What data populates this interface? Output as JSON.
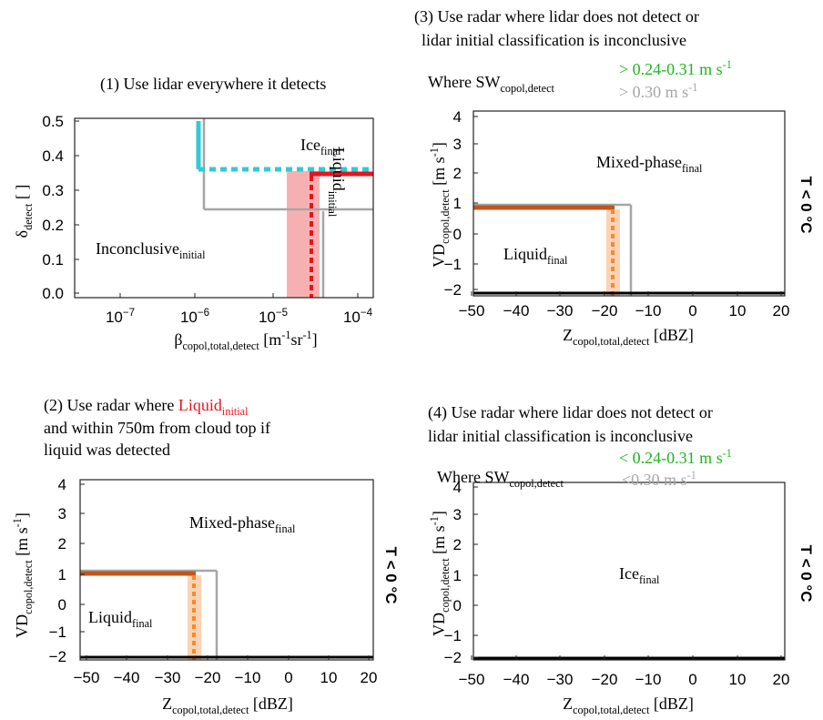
{
  "panels": [
    {
      "title": [
        [
          "(1) Use lidar everywhere it detects"
        ]
      ],
      "y_label": [
        "δ",
        {
          "t": "detect",
          "s": "sub"
        },
        " [ ]"
      ],
      "x_label": [
        "β",
        {
          "t": "copol,total,detect",
          "s": "sub"
        },
        " [m",
        {
          "t": "-1",
          "s": "sup"
        },
        "sr",
        {
          "t": "-1",
          "s": "sup"
        },
        "]"
      ],
      "y_ticks": [
        "0.5",
        "0.4",
        "0.3",
        "0.2",
        "0.1",
        "0.0"
      ],
      "x_ticks": [
        [
          "10",
          {
            "t": "−7",
            "s": "sup"
          }
        ],
        [
          "10",
          {
            "t": "−6",
            "s": "sup"
          }
        ],
        [
          "10",
          {
            "t": "−5",
            "s": "sup"
          }
        ],
        [
          "10",
          {
            "t": "−4",
            "s": "sup"
          }
        ]
      ],
      "regions": [
        [
          "Ice",
          {
            "t": "final",
            "s": "sub"
          }
        ],
        [
          "Inconclusive",
          {
            "t": "initial",
            "s": "sub"
          }
        ],
        [
          "Liquid",
          {
            "t": "initial",
            "s": "sub"
          }
        ]
      ],
      "notes": []
    },
    {
      "title": [
        [
          "(2) Use radar where ",
          {
            "t": "Liquid",
            "c": "#e8141b"
          },
          {
            "t": "initial",
            "s": "sub",
            "c": "#e8141b"
          }
        ],
        [
          " and within 750m from cloud top if"
        ],
        [
          " liquid was detected"
        ]
      ],
      "y_label": [
        "VD",
        {
          "t": "copol,detect",
          "s": "sub"
        },
        " [m s",
        {
          "t": "-1",
          "s": "sup"
        },
        "]"
      ],
      "x_label": [
        "Z",
        {
          "t": "copol,total,detect",
          "s": "sub"
        },
        " [dBZ]"
      ],
      "y_ticks": [
        "4",
        "3",
        "2",
        "1",
        "0",
        "−1",
        "−2"
      ],
      "x_ticks": [
        [
          "−50"
        ],
        [
          "−40"
        ],
        [
          "−30"
        ],
        [
          "−20"
        ],
        [
          "−10"
        ],
        [
          "0"
        ],
        [
          "10"
        ],
        [
          "20"
        ]
      ],
      "regions": [
        [
          "Mixed-phase",
          {
            "t": "final",
            "s": "sub"
          }
        ],
        [
          "Liquid",
          {
            "t": "final",
            "s": "sub"
          }
        ]
      ],
      "side_label": "T < 0 °C",
      "notes": []
    },
    {
      "title": [
        [
          "(3) Use radar where lidar does not detect or"
        ],
        [
          " lidar initial classification is inconclusive"
        ]
      ],
      "y_label": [
        "VD",
        {
          "t": "copol,detect",
          "s": "sub"
        },
        " [m s",
        {
          "t": "-1",
          "s": "sup"
        },
        "]"
      ],
      "x_label": [
        "Z",
        {
          "t": "copol,total,detect",
          "s": "sub"
        },
        " [dBZ]"
      ],
      "y_ticks": [
        "4",
        "3",
        "2",
        "1",
        "0",
        "−1",
        "−2"
      ],
      "x_ticks": [
        [
          "−50"
        ],
        [
          "−40"
        ],
        [
          "−30"
        ],
        [
          "−20"
        ],
        [
          "−10"
        ],
        [
          "0"
        ],
        [
          "10"
        ],
        [
          "20"
        ]
      ],
      "regions": [
        [
          "Mixed-phase",
          {
            "t": "final",
            "s": "sub"
          }
        ],
        [
          "Liquid",
          {
            "t": "final",
            "s": "sub"
          }
        ]
      ],
      "side_label": "T < 0 °C",
      "notes": [
        [
          {
            "t": "> 0.24-0.31 m s",
            "c": "#1fb51f"
          },
          {
            "t": "-1",
            "s": "sup",
            "c": "#1fb51f"
          }
        ],
        [
          "Where SW",
          {
            "t": "copol,detect",
            "s": "sub"
          }
        ],
        [
          {
            "t": "> 0.30 m s",
            "c": "#a6a6a6"
          },
          {
            "t": "-1",
            "s": "sup",
            "c": "#a6a6a6"
          }
        ]
      ]
    },
    {
      "title": [
        [
          "(4) Use radar where lidar does not detect or"
        ],
        [
          "lidar initial classification is inconclusive"
        ]
      ],
      "y_label": [
        "VD",
        {
          "t": "copol,detect",
          "s": "sub"
        },
        " [m s",
        {
          "t": "-1",
          "s": "sup"
        },
        "]"
      ],
      "x_label": [
        "Z",
        {
          "t": "copol,total,detect",
          "s": "sub"
        },
        " [dBZ]"
      ],
      "y_ticks": [
        "4",
        "3",
        "2",
        "1",
        "0",
        "−1",
        "−2"
      ],
      "x_ticks": [
        [
          "−50"
        ],
        [
          "−40"
        ],
        [
          "−30"
        ],
        [
          "−20"
        ],
        [
          "−10"
        ],
        [
          "0"
        ],
        [
          "10"
        ],
        [
          "20"
        ]
      ],
      "regions": [
        [
          "Ice",
          {
            "t": "final",
            "s": "sub"
          }
        ]
      ],
      "side_label": "T < 0 °C",
      "notes": [
        [
          {
            "t": "< 0.24-0.31 m s",
            "c": "#1fb51f"
          },
          {
            "t": "-1",
            "s": "sup",
            "c": "#1fb51f"
          }
        ],
        [
          "Where SW",
          {
            "t": "copol,detect",
            "s": "sub"
          }
        ],
        [
          {
            "t": "<0.30 m s",
            "c": "#a6a6a6"
          },
          {
            "t": "-1",
            "s": "sup",
            "c": "#a6a6a6"
          }
        ]
      ]
    }
  ]
}
